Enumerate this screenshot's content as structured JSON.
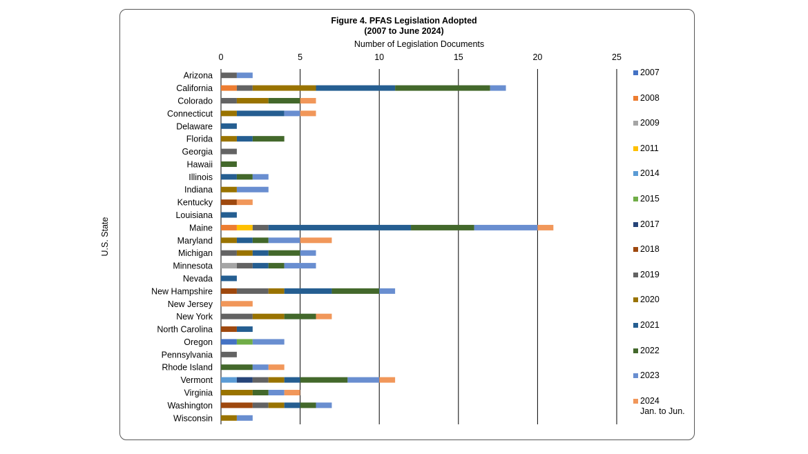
{
  "chart_data": {
    "type": "bar",
    "orientation": "horizontal",
    "stacked": true,
    "title": "Figure 4. PFAS Legislation Adopted",
    "subtitle": "(2007 to June 2024)",
    "xlabel": "Number of Legislation Documents",
    "ylabel": "U.S. State",
    "xlim": [
      0,
      25
    ],
    "xticks": [
      "0",
      "5",
      "10",
      "15",
      "20",
      "25"
    ],
    "grid": true,
    "legend_position": "right",
    "categories": [
      "Arizona",
      "California",
      "Colorado",
      "Connecticut",
      "Delaware",
      "Florida",
      "Georgia",
      "Hawaii",
      "Illinois",
      "Indiana",
      "Kentucky",
      "Louisiana",
      "Maine",
      "Maryland",
      "Michigan",
      "Minnesota",
      "Nevada",
      "New Hampshire",
      "New Jersey",
      "New York",
      "North Carolina",
      "Oregon",
      "Pennsylvania",
      "Rhode Island",
      "Vermont",
      "Virginia",
      "Washington",
      "Wisconsin"
    ],
    "series": [
      {
        "name": "2007",
        "label_line2": "",
        "color": "#4472C4",
        "values": [
          0,
          0,
          0,
          0,
          0,
          0,
          0,
          0,
          0,
          0,
          0,
          0,
          0,
          0,
          0,
          0,
          0,
          0,
          0,
          0,
          0,
          1,
          0,
          0,
          0,
          0,
          0,
          0
        ]
      },
      {
        "name": "2008",
        "label_line2": "",
        "color": "#ED7D31",
        "values": [
          0,
          1,
          0,
          0,
          0,
          0,
          0,
          0,
          0,
          0,
          0,
          0,
          1,
          0,
          0,
          0,
          0,
          0,
          0,
          0,
          0,
          0,
          0,
          0,
          0,
          0,
          0,
          0
        ]
      },
      {
        "name": "2009",
        "label_line2": "",
        "color": "#A5A5A5",
        "values": [
          0,
          0,
          0,
          0,
          0,
          0,
          0,
          0,
          0,
          0,
          0,
          0,
          0,
          0,
          0,
          1,
          0,
          0,
          0,
          0,
          0,
          0,
          0,
          0,
          0,
          0,
          0,
          0
        ]
      },
      {
        "name": "2011",
        "label_line2": "",
        "color": "#FFC000",
        "values": [
          0,
          0,
          0,
          0,
          0,
          0,
          0,
          0,
          0,
          0,
          0,
          0,
          1,
          0,
          0,
          0,
          0,
          0,
          0,
          0,
          0,
          0,
          0,
          0,
          0,
          0,
          0,
          0
        ]
      },
      {
        "name": "2014",
        "label_line2": "",
        "color": "#5B9BD5",
        "values": [
          0,
          0,
          0,
          0,
          0,
          0,
          0,
          0,
          0,
          0,
          0,
          0,
          0,
          0,
          0,
          0,
          0,
          0,
          0,
          0,
          0,
          0,
          0,
          0,
          1,
          0,
          0,
          0
        ]
      },
      {
        "name": "2015",
        "label_line2": "",
        "color": "#70AD47",
        "values": [
          0,
          0,
          0,
          0,
          0,
          0,
          0,
          0,
          0,
          0,
          0,
          0,
          0,
          0,
          0,
          0,
          0,
          0,
          0,
          0,
          0,
          1,
          0,
          0,
          0,
          0,
          0,
          0
        ]
      },
      {
        "name": "2017",
        "label_line2": "",
        "color": "#264478",
        "values": [
          0,
          0,
          0,
          0,
          0,
          0,
          0,
          0,
          0,
          0,
          0,
          0,
          0,
          0,
          0,
          0,
          0,
          0,
          0,
          0,
          0,
          0,
          0,
          0,
          1,
          0,
          0,
          0
        ]
      },
      {
        "name": "2018",
        "label_line2": "",
        "color": "#9E480E",
        "values": [
          0,
          0,
          0,
          0,
          0,
          0,
          0,
          0,
          0,
          0,
          1,
          0,
          0,
          0,
          0,
          0,
          0,
          1,
          0,
          0,
          1,
          0,
          0,
          0,
          0,
          0,
          2,
          0
        ]
      },
      {
        "name": "2019",
        "label_line2": "",
        "color": "#636363",
        "values": [
          1,
          1,
          1,
          0,
          0,
          0,
          1,
          0,
          0,
          0,
          0,
          0,
          1,
          0,
          1,
          1,
          0,
          2,
          0,
          2,
          0,
          0,
          1,
          0,
          1,
          0,
          1,
          0
        ]
      },
      {
        "name": "2020",
        "label_line2": "",
        "color": "#997300",
        "values": [
          0,
          4,
          2,
          1,
          0,
          1,
          0,
          0,
          0,
          1,
          0,
          0,
          0,
          1,
          1,
          0,
          0,
          1,
          0,
          2,
          0,
          0,
          0,
          0,
          1,
          2,
          1,
          1
        ]
      },
      {
        "name": "2021",
        "label_line2": "",
        "color": "#255E91",
        "values": [
          0,
          5,
          0,
          3,
          1,
          1,
          0,
          0,
          1,
          0,
          0,
          1,
          9,
          1,
          1,
          1,
          1,
          3,
          0,
          0,
          1,
          0,
          0,
          0,
          1,
          0,
          1,
          0
        ]
      },
      {
        "name": "2022",
        "label_line2": "",
        "color": "#43682B",
        "values": [
          0,
          6,
          2,
          0,
          0,
          2,
          0,
          1,
          1,
          0,
          0,
          0,
          4,
          1,
          2,
          1,
          0,
          3,
          0,
          2,
          0,
          0,
          0,
          2,
          3,
          1,
          1,
          0
        ]
      },
      {
        "name": "2023",
        "label_line2": "",
        "color": "#698ED0",
        "values": [
          1,
          1,
          0,
          1,
          0,
          0,
          0,
          0,
          1,
          2,
          0,
          0,
          4,
          2,
          1,
          2,
          0,
          1,
          0,
          0,
          0,
          2,
          0,
          1,
          2,
          1,
          1,
          1
        ]
      },
      {
        "name": "2024",
        "label_line2": "Jan. to Jun.",
        "color": "#F1975A",
        "values": [
          0,
          0,
          1,
          1,
          0,
          0,
          0,
          0,
          0,
          0,
          1,
          0,
          1,
          2,
          0,
          0,
          0,
          0,
          2,
          1,
          0,
          0,
          0,
          1,
          1,
          1,
          0,
          0
        ]
      }
    ]
  }
}
